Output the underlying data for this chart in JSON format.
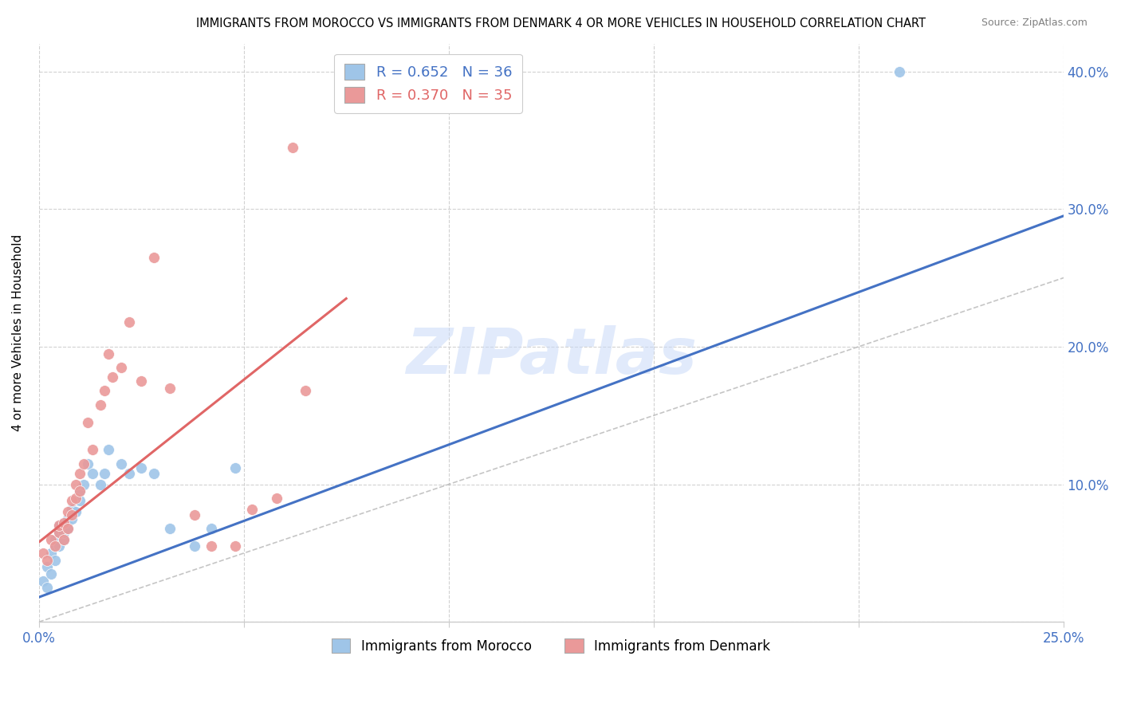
{
  "title": "IMMIGRANTS FROM MOROCCO VS IMMIGRANTS FROM DENMARK 4 OR MORE VEHICLES IN HOUSEHOLD CORRELATION CHART",
  "source": "Source: ZipAtlas.com",
  "ylabel": "4 or more Vehicles in Household",
  "xlim": [
    0.0,
    0.25
  ],
  "ylim": [
    0.0,
    0.42
  ],
  "xtick_positions": [
    0.0,
    0.05,
    0.1,
    0.15,
    0.2,
    0.25
  ],
  "xtick_labels": [
    "0.0%",
    "",
    "",
    "",
    "",
    "25.0%"
  ],
  "ytick_positions": [
    0.0,
    0.1,
    0.2,
    0.3,
    0.4
  ],
  "ytick_labels_right": [
    "",
    "10.0%",
    "20.0%",
    "30.0%",
    "40.0%"
  ],
  "title_fontsize": 10.5,
  "tick_color": "#4472c4",
  "grid_color": "#cccccc",
  "background_color": "#ffffff",
  "legend_label1": "R = 0.652   N = 36",
  "legend_label2": "R = 0.370   N = 35",
  "bottom_legend_label1": "Immigrants from Morocco",
  "bottom_legend_label2": "Immigrants from Denmark",
  "watermark": "ZIPatlas",
  "blue_color": "#9fc5e8",
  "pink_color": "#ea9999",
  "blue_line_color": "#4472c4",
  "pink_line_color": "#e06666",
  "diag_line_color": "#b7b7b7",
  "morocco_x": [
    0.001,
    0.002,
    0.002,
    0.003,
    0.003,
    0.004,
    0.004,
    0.004,
    0.005,
    0.005,
    0.005,
    0.006,
    0.006,
    0.006,
    0.007,
    0.007,
    0.008,
    0.008,
    0.009,
    0.01,
    0.01,
    0.011,
    0.012,
    0.013,
    0.015,
    0.016,
    0.017,
    0.02,
    0.022,
    0.025,
    0.028,
    0.032,
    0.038,
    0.042,
    0.048,
    0.21
  ],
  "morocco_y": [
    0.03,
    0.025,
    0.04,
    0.035,
    0.05,
    0.045,
    0.055,
    0.06,
    0.055,
    0.065,
    0.07,
    0.06,
    0.072,
    0.065,
    0.068,
    0.075,
    0.075,
    0.082,
    0.08,
    0.088,
    0.095,
    0.1,
    0.115,
    0.108,
    0.1,
    0.108,
    0.125,
    0.115,
    0.108,
    0.112,
    0.108,
    0.068,
    0.055,
    0.068,
    0.112,
    0.4
  ],
  "denmark_x": [
    0.001,
    0.002,
    0.003,
    0.004,
    0.005,
    0.005,
    0.006,
    0.006,
    0.007,
    0.007,
    0.008,
    0.008,
    0.009,
    0.009,
    0.01,
    0.01,
    0.011,
    0.012,
    0.013,
    0.015,
    0.016,
    0.017,
    0.018,
    0.02,
    0.022,
    0.025,
    0.028,
    0.032,
    0.038,
    0.042,
    0.048,
    0.052,
    0.058,
    0.062,
    0.065
  ],
  "denmark_y": [
    0.05,
    0.045,
    0.06,
    0.055,
    0.065,
    0.07,
    0.06,
    0.072,
    0.068,
    0.08,
    0.078,
    0.088,
    0.09,
    0.1,
    0.095,
    0.108,
    0.115,
    0.145,
    0.125,
    0.158,
    0.168,
    0.195,
    0.178,
    0.185,
    0.218,
    0.175,
    0.265,
    0.17,
    0.078,
    0.055,
    0.055,
    0.082,
    0.09,
    0.345,
    0.168
  ],
  "blue_line_x0": 0.0,
  "blue_line_y0": 0.018,
  "blue_line_x1": 0.25,
  "blue_line_y1": 0.295,
  "pink_line_x0": 0.0,
  "pink_line_y0": 0.058,
  "pink_line_x1": 0.075,
  "pink_line_y1": 0.235
}
